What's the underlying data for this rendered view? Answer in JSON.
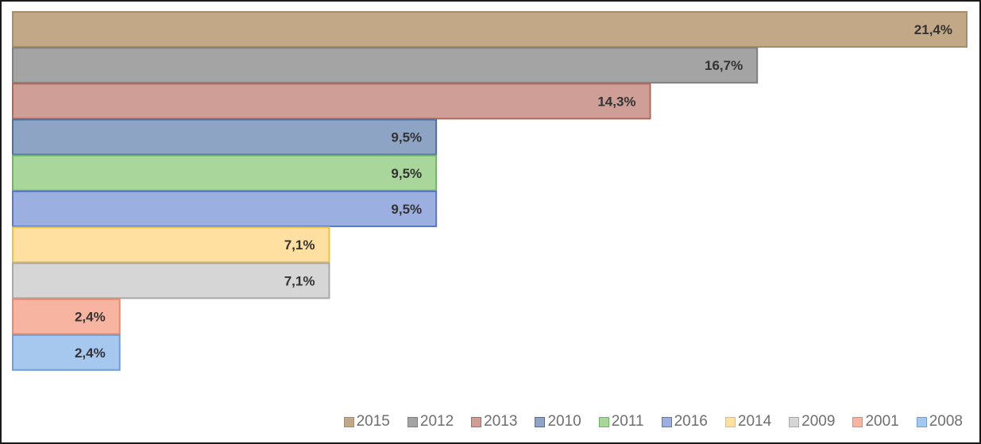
{
  "chart_data": {
    "type": "bar",
    "orientation": "horizontal",
    "title": "",
    "xlabel": "",
    "ylabel": "",
    "xlim": [
      0,
      21.4
    ],
    "grid": false,
    "legend_position": "bottom-right",
    "series": [
      {
        "name": "2015",
        "value": 21.4,
        "label": "21,4%",
        "fill": "#c2a886",
        "stroke": "#a98d68"
      },
      {
        "name": "2012",
        "value": 16.7,
        "label": "16,7%",
        "fill": "#a4a4a4",
        "stroke": "#7f7f7f"
      },
      {
        "name": "2013",
        "value": 14.3,
        "label": "14,3%",
        "fill": "#cf9e96",
        "stroke": "#b06a5a"
      },
      {
        "name": "2010",
        "value": 9.5,
        "label": "9,5%",
        "fill": "#8ea4c4",
        "stroke": "#4f6f9d"
      },
      {
        "name": "2011",
        "value": 9.5,
        "label": "9,5%",
        "fill": "#a9d79b",
        "stroke": "#6db75c"
      },
      {
        "name": "2016",
        "value": 9.5,
        "label": "9,5%",
        "fill": "#9bafe0",
        "stroke": "#5b78c6"
      },
      {
        "name": "2014",
        "value": 7.1,
        "label": "7,1%",
        "fill": "#ffe0a0",
        "stroke": "#f0c040"
      },
      {
        "name": "2009",
        "value": 7.1,
        "label": "7,1%",
        "fill": "#d6d6d6",
        "stroke": "#a8a8a8"
      },
      {
        "name": "2001",
        "value": 2.4,
        "label": "2,4%",
        "fill": "#f7b4a0",
        "stroke": "#e58a6e"
      },
      {
        "name": "2008",
        "value": 2.4,
        "label": "2,4%",
        "fill": "#a6c7ee",
        "stroke": "#6f9fd8"
      }
    ]
  }
}
